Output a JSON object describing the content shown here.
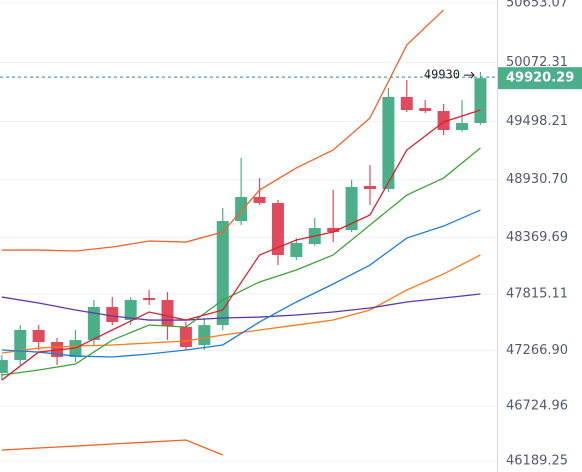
{
  "chart_data": {
    "type": "candlestick",
    "x": [
      0,
      1,
      2,
      3,
      4,
      5,
      6,
      7,
      8,
      9,
      10,
      11,
      12,
      13,
      14,
      15,
      16,
      17,
      18,
      19,
      20,
      21,
      22,
      23,
      24,
      25,
      26
    ],
    "open": [
      47047,
      47173,
      47466,
      47349,
      47203,
      47368,
      47690,
      47563,
      47778,
      47758,
      47495,
      47320,
      47514,
      48528,
      48762,
      48704,
      48177,
      48304,
      48460,
      48440,
      48869,
      48840,
      49737,
      49629,
      49600,
      49415,
      49483
    ],
    "high": [
      47222,
      47514,
      47514,
      47388,
      47466,
      47758,
      47787,
      47787,
      47856,
      47836,
      47544,
      47583,
      48655,
      49142,
      48947,
      48733,
      48362,
      48557,
      48830,
      48928,
      49074,
      49824,
      49902,
      49707,
      49668,
      49707,
      49980
    ],
    "low": [
      46978,
      47125,
      47271,
      47125,
      47154,
      47320,
      47514,
      47514,
      47710,
      47368,
      47271,
      47271,
      47466,
      48489,
      48684,
      48099,
      48148,
      48284,
      48323,
      48421,
      48684,
      48811,
      49590,
      49581,
      49366,
      49396,
      49464
    ],
    "close": [
      47173,
      47466,
      47349,
      47203,
      47368,
      47690,
      47544,
      47758,
      47758,
      47505,
      47300,
      47514,
      48528,
      48762,
      48704,
      48197,
      48314,
      48460,
      48421,
      48860,
      48840,
      49737,
      49610,
      49600,
      49415,
      49483,
      49920.29
    ],
    "up_color": "#4caf8a",
    "down_color": "#e04a5c",
    "overlays": [
      {
        "color": "#f2632a",
        "x": [
          0,
          2,
          4,
          6,
          8,
          10,
          12,
          14,
          16,
          18,
          20,
          22,
          24,
          26
        ],
        "values": [
          48245,
          48245,
          48236,
          48275,
          48333,
          48323,
          48421,
          48830,
          49045,
          49220,
          49532,
          50243,
          50585,
          null
        ]
      },
      {
        "color": "#f2632a",
        "x": [
          0,
          2,
          4,
          6,
          8,
          10,
          12,
          14,
          16,
          18,
          20,
          22,
          24,
          26
        ],
        "values": [
          46296,
          46316,
          46335,
          46355,
          46374,
          46394,
          46248,
          null,
          null,
          null,
          null,
          null,
          null,
          null
        ]
      },
      {
        "color": "#ff7a1a",
        "x": [
          0,
          2,
          4,
          6,
          8,
          10,
          12,
          14,
          16,
          18,
          20,
          22,
          24,
          26
        ],
        "values": [
          47242,
          47290,
          47310,
          47320,
          47339,
          47359,
          47417,
          47466,
          47514,
          47563,
          47661,
          47856,
          48012,
          48197
        ]
      },
      {
        "color": "#5b3aa8",
        "x": [
          0,
          2,
          4,
          6,
          8,
          10,
          12,
          14,
          16,
          18,
          20,
          22,
          24,
          26
        ],
        "values": [
          47787,
          47729,
          47661,
          47602,
          47563,
          47563,
          47583,
          47592,
          47612,
          47641,
          47680,
          47739,
          47778,
          47817
        ]
      },
      {
        "color": "#1e7fd8",
        "x": [
          0,
          2,
          4,
          6,
          8,
          10,
          12,
          14,
          16,
          18,
          20,
          22,
          24,
          26
        ],
        "values": [
          47271,
          47251,
          47212,
          47203,
          47232,
          47271,
          47320,
          47544,
          47739,
          47914,
          48099,
          48362,
          48479,
          48635
        ]
      },
      {
        "color": "#3fa33a",
        "x": [
          0,
          2,
          4,
          6,
          8,
          10,
          12,
          14,
          16,
          18,
          20,
          22,
          24,
          26
        ],
        "values": [
          47027,
          47076,
          47134,
          47368,
          47514,
          47495,
          47758,
          47934,
          48051,
          48197,
          48489,
          48781,
          48947,
          49240
        ]
      },
      {
        "color": "#d3242f",
        "x": [
          0,
          2,
          4,
          6,
          8,
          10,
          12,
          14,
          16,
          18,
          20,
          22,
          24,
          26
        ],
        "values": [
          46978,
          47251,
          47290,
          47466,
          47641,
          47563,
          47661,
          48197,
          48343,
          48421,
          48587,
          49220,
          49493,
          49610
        ]
      }
    ],
    "marker_price": 49930,
    "marker_color": "#2e8c8c",
    "xlim": [
      -0.1,
      26.9
    ],
    "ylim": [
      46082,
      50682
    ],
    "yticks": [
      50653.07,
      50072.31,
      49498.21,
      {
        "value": 48930.7,
        "label": "48930.70"
      },
      48369.69,
      47815.11,
      {
        "value": 47266.9,
        "label": "47266.90"
      },
      46724.96,
      46189.25
    ],
    "grid": true
  }
}
